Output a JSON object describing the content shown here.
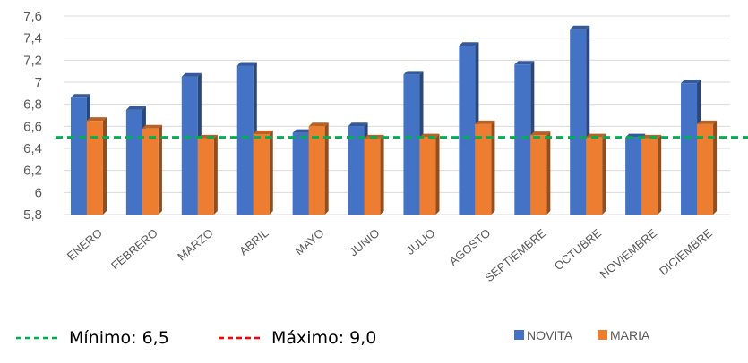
{
  "chart_data": {
    "type": "bar",
    "title": "",
    "xlabel": "",
    "ylabel": "",
    "categories": [
      "ENERO",
      "FEBRERO",
      "MARZO",
      "ABRIL",
      "MAYO",
      "JUNIO",
      "JULIO",
      "AGOSTO",
      "SEPTIEMBRE",
      "OCTUBRE",
      "NOVIEMBRE",
      "DICIEMBRE"
    ],
    "series": [
      {
        "name": "NOVITA",
        "color": "#4472C4",
        "values": [
          6.86,
          6.75,
          7.05,
          7.15,
          6.54,
          6.6,
          7.07,
          7.33,
          7.16,
          7.48,
          6.5,
          6.99
        ]
      },
      {
        "name": "MARIA",
        "color": "#ED7D31",
        "values": [
          6.65,
          6.58,
          6.49,
          6.53,
          6.6,
          6.49,
          6.5,
          6.62,
          6.52,
          6.5,
          6.49,
          6.62
        ]
      }
    ],
    "ylim": [
      5.8,
      7.6
    ],
    "yticks": [
      "5,8",
      "6",
      "6,2",
      "6,4",
      "6,6",
      "6,8",
      "7",
      "7,2",
      "7,4",
      "7,6"
    ],
    "ytick_values": [
      5.8,
      6.0,
      6.2,
      6.4,
      6.6,
      6.8,
      7.0,
      7.2,
      7.4,
      7.6
    ],
    "grid": true,
    "legend_position": "bottom-right",
    "reference_lines": [
      {
        "label": "Mínimo: 6,5",
        "value": 6.5,
        "color": "#00B050",
        "style": "dashed",
        "drawn": true
      },
      {
        "label": "Máximo: 9,0",
        "value": 9.0,
        "color": "#FF0000",
        "style": "dashed",
        "drawn": false
      }
    ]
  }
}
